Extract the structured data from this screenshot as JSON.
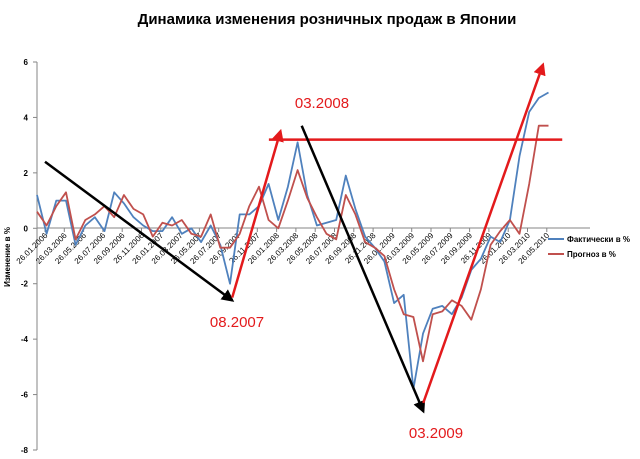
{
  "chart_data": {
    "type": "line",
    "title": "Динамика изменения розничных продаж в Японии",
    "ylabel": "Изменение в %",
    "xlabel": "",
    "ylim": [
      -8,
      6
    ],
    "yticks": [
      -8,
      -6,
      -4,
      -2,
      0,
      2,
      4,
      6
    ],
    "grid": false,
    "legend_position": "right",
    "x_tick_labels": [
      "26.01.2006",
      "26.03.2006",
      "26.05.2006",
      "26.07.2006",
      "26.09.2006",
      "26.11.2006",
      "26.01.2007",
      "26.03.2007",
      "26.05.2007",
      "26.07.2007",
      "26.09.2007",
      "26.11.2007",
      "26.01.2008",
      "26.03.2008",
      "26.05.2008",
      "26.07.2008",
      "26.09.2008",
      "26.11.2008",
      "26.01.2009",
      "26.03.2009",
      "26.05.2009",
      "26.07.2009",
      "26.09.2009",
      "26.11.2009",
      "26.01.2010",
      "26.03.2010",
      "26.05.2010"
    ],
    "series": [
      {
        "name": "Фактически в %",
        "color": "#4f81bd",
        "values": [
          1.2,
          -0.2,
          1.0,
          1.0,
          -0.6,
          0.1,
          0.4,
          -0.1,
          1.3,
          0.9,
          0.4,
          0.1,
          -0.1,
          -0.1,
          0.4,
          -0.2,
          0.0,
          -0.5,
          0.1,
          -0.6,
          -2.0,
          0.5,
          0.5,
          0.8,
          1.6,
          0.3,
          1.5,
          3.1,
          1.2,
          0.1,
          0.2,
          0.3,
          1.9,
          0.7,
          -0.3,
          -0.7,
          -1.2,
          -2.7,
          -2.4,
          -5.8,
          -3.8,
          -2.9,
          -2.8,
          -3.1,
          -2.5,
          -1.5,
          -1.1,
          -0.3,
          -0.5,
          0.3,
          2.6,
          4.2,
          4.7,
          4.9
        ]
      },
      {
        "name": "Прогноз в %",
        "color": "#c0504d",
        "values": [
          0.6,
          0.1,
          0.8,
          1.3,
          -0.4,
          0.3,
          0.5,
          0.8,
          0.4,
          1.2,
          0.7,
          0.5,
          -0.3,
          0.2,
          0.1,
          0.3,
          -0.2,
          -0.3,
          0.5,
          -0.7,
          -0.7,
          -0.2,
          0.8,
          1.5,
          0.3,
          0.0,
          1.0,
          2.1,
          1.1,
          0.4,
          -0.2,
          -0.4,
          1.2,
          0.5,
          -0.5,
          -0.7,
          -1.0,
          -2.2,
          -3.1,
          -3.2,
          -4.8,
          -3.1,
          -3.0,
          -2.6,
          -2.8,
          -3.3,
          -2.2,
          -0.6,
          -0.1,
          0.3,
          -0.2,
          1.6,
          3.7,
          3.7
        ]
      }
    ],
    "annotations": [
      {
        "text": "08.2007",
        "color": "#e31a1c"
      },
      {
        "text": "03.2008",
        "color": "#e31a1c"
      },
      {
        "text": "03.2009",
        "color": "#e31a1c"
      }
    ],
    "trend_arrows": [
      {
        "color": "#000000",
        "from": [
          0.0,
          2.4
        ],
        "to": [
          9.7,
          -2.6
        ]
      },
      {
        "color": "#e31a1c",
        "from": [
          9.7,
          -2.5
        ],
        "to": [
          12.2,
          3.5
        ]
      },
      {
        "color": "#000000",
        "from": [
          13.3,
          3.7
        ],
        "to": [
          19.6,
          -6.6
        ]
      },
      {
        "color": "#e31a1c",
        "from": [
          19.6,
          -6.3
        ],
        "to": [
          25.8,
          5.9
        ]
      }
    ],
    "reference_line": {
      "color": "#e31a1c",
      "y": 3.2,
      "x_from": 11.6,
      "x_to": 26.8
    }
  }
}
